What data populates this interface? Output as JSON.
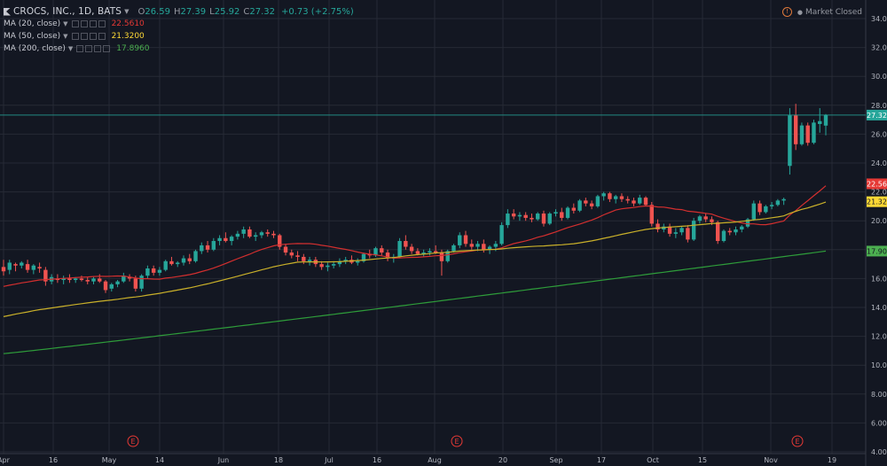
{
  "header": {
    "symbol": "CROCS, INC., 1D, BATS",
    "ohlc": {
      "o_label": "O",
      "o": "26.59",
      "h_label": "H",
      "h": "27.39",
      "l_label": "L",
      "l": "25.92",
      "c_label": "C",
      "c": "27.32"
    },
    "change": "+0.73 (+2.75%)"
  },
  "indicators": [
    {
      "label": "MA (20, close)",
      "value": "22.5610",
      "color": "#e53935"
    },
    {
      "label": "MA (50, close)",
      "value": "21.3200",
      "color": "#fdd835"
    },
    {
      "label": "MA (200, close)",
      "value": "17.8960",
      "color": "#4caf50"
    }
  ],
  "status": {
    "text": "Market Closed",
    "icon": "alert-icon"
  },
  "colors": {
    "up": "#26a69a",
    "down": "#ef5350",
    "ma20": "#d32f2f",
    "ma50": "#c9b02a",
    "ma200": "#2e9c3a",
    "bg": "#131722"
  },
  "chart_data": {
    "type": "candlestick",
    "ylim": [
      4,
      35
    ],
    "y_ticks": [
      "34.00",
      "32.00",
      "30.00",
      "28.00",
      "26.00",
      "24.00",
      "22.00",
      "20.00",
      "18.00",
      "16.00",
      "14.00",
      "12.00",
      "10.00",
      "8.00",
      "6.00",
      "4.00"
    ],
    "x_labels": [
      "Apr",
      "16",
      "May",
      "14",
      "Jun",
      "18",
      "Jul",
      "16",
      "Aug",
      "20",
      "Sep",
      "17",
      "Oct",
      "15",
      "Nov",
      "19"
    ],
    "last_price_label": "27.32",
    "ma_labels": {
      "ma20": "22.56",
      "ma50": "21.32",
      "ma200": "17.90"
    },
    "earnings_markers": [
      "E",
      "E",
      "E"
    ],
    "candles": [
      {
        "o": 16.8,
        "h": 17.3,
        "l": 16.2,
        "c": 16.5
      },
      {
        "o": 16.6,
        "h": 17.3,
        "l": 16.3,
        "c": 17.1
      },
      {
        "o": 17.0,
        "h": 17.1,
        "l": 16.5,
        "c": 16.9
      },
      {
        "o": 16.9,
        "h": 17.2,
        "l": 16.7,
        "c": 17.1
      },
      {
        "o": 17.0,
        "h": 17.3,
        "l": 16.4,
        "c": 16.6
      },
      {
        "o": 16.6,
        "h": 17.0,
        "l": 16.3,
        "c": 16.9
      },
      {
        "o": 16.8,
        "h": 17.1,
        "l": 16.4,
        "c": 16.7
      },
      {
        "o": 16.6,
        "h": 16.8,
        "l": 15.5,
        "c": 15.8
      },
      {
        "o": 15.8,
        "h": 16.3,
        "l": 15.6,
        "c": 16.1
      },
      {
        "o": 16.0,
        "h": 16.3,
        "l": 15.7,
        "c": 15.9
      },
      {
        "o": 15.9,
        "h": 16.2,
        "l": 15.6,
        "c": 16.0
      },
      {
        "o": 16.0,
        "h": 16.3,
        "l": 15.7,
        "c": 15.9
      },
      {
        "o": 15.9,
        "h": 16.1,
        "l": 15.7,
        "c": 16.0
      },
      {
        "o": 16.0,
        "h": 16.2,
        "l": 15.8,
        "c": 15.9
      },
      {
        "o": 15.9,
        "h": 16.1,
        "l": 15.6,
        "c": 15.8
      },
      {
        "o": 15.8,
        "h": 16.1,
        "l": 15.6,
        "c": 16.0
      },
      {
        "o": 16.0,
        "h": 16.3,
        "l": 15.7,
        "c": 15.8
      },
      {
        "o": 15.8,
        "h": 15.9,
        "l": 15.0,
        "c": 15.2
      },
      {
        "o": 15.3,
        "h": 15.7,
        "l": 15.1,
        "c": 15.6
      },
      {
        "o": 15.6,
        "h": 15.9,
        "l": 15.4,
        "c": 15.8
      },
      {
        "o": 15.8,
        "h": 16.4,
        "l": 15.7,
        "c": 16.2
      },
      {
        "o": 16.1,
        "h": 16.3,
        "l": 15.8,
        "c": 16.0
      },
      {
        "o": 16.0,
        "h": 16.2,
        "l": 15.1,
        "c": 15.3
      },
      {
        "o": 15.3,
        "h": 16.3,
        "l": 15.1,
        "c": 16.2
      },
      {
        "o": 16.2,
        "h": 16.9,
        "l": 16.0,
        "c": 16.7
      },
      {
        "o": 16.7,
        "h": 16.9,
        "l": 16.2,
        "c": 16.4
      },
      {
        "o": 16.4,
        "h": 16.8,
        "l": 16.2,
        "c": 16.6
      },
      {
        "o": 16.6,
        "h": 17.3,
        "l": 16.5,
        "c": 17.2
      },
      {
        "o": 17.2,
        "h": 17.5,
        "l": 16.9,
        "c": 17.0
      },
      {
        "o": 17.0,
        "h": 17.2,
        "l": 16.8,
        "c": 17.1
      },
      {
        "o": 17.1,
        "h": 17.6,
        "l": 16.9,
        "c": 17.4
      },
      {
        "o": 17.4,
        "h": 17.7,
        "l": 17.0,
        "c": 17.2
      },
      {
        "o": 17.2,
        "h": 18.0,
        "l": 17.1,
        "c": 17.9
      },
      {
        "o": 17.9,
        "h": 18.5,
        "l": 17.7,
        "c": 18.3
      },
      {
        "o": 18.3,
        "h": 18.6,
        "l": 17.8,
        "c": 18.0
      },
      {
        "o": 18.0,
        "h": 18.8,
        "l": 17.9,
        "c": 18.6
      },
      {
        "o": 18.6,
        "h": 19.0,
        "l": 18.3,
        "c": 18.8
      },
      {
        "o": 18.8,
        "h": 19.2,
        "l": 18.5,
        "c": 18.6
      },
      {
        "o": 18.6,
        "h": 19.0,
        "l": 18.3,
        "c": 18.9
      },
      {
        "o": 18.9,
        "h": 19.3,
        "l": 18.7,
        "c": 19.1
      },
      {
        "o": 19.1,
        "h": 19.6,
        "l": 18.8,
        "c": 19.4
      },
      {
        "o": 19.4,
        "h": 19.6,
        "l": 18.8,
        "c": 18.9
      },
      {
        "o": 18.9,
        "h": 19.2,
        "l": 18.6,
        "c": 19.0
      },
      {
        "o": 19.0,
        "h": 19.3,
        "l": 18.8,
        "c": 19.2
      },
      {
        "o": 19.2,
        "h": 19.4,
        "l": 18.9,
        "c": 19.1
      },
      {
        "o": 19.1,
        "h": 19.3,
        "l": 18.8,
        "c": 19.0
      },
      {
        "o": 19.0,
        "h": 19.1,
        "l": 18.0,
        "c": 18.2
      },
      {
        "o": 18.2,
        "h": 18.4,
        "l": 17.6,
        "c": 17.8
      },
      {
        "o": 17.8,
        "h": 18.0,
        "l": 17.4,
        "c": 17.6
      },
      {
        "o": 17.6,
        "h": 17.9,
        "l": 17.2,
        "c": 17.5
      },
      {
        "o": 17.5,
        "h": 17.7,
        "l": 17.0,
        "c": 17.2
      },
      {
        "o": 17.2,
        "h": 17.5,
        "l": 16.9,
        "c": 17.3
      },
      {
        "o": 17.3,
        "h": 17.5,
        "l": 16.8,
        "c": 17.0
      },
      {
        "o": 17.0,
        "h": 17.2,
        "l": 16.6,
        "c": 16.8
      },
      {
        "o": 16.8,
        "h": 17.1,
        "l": 16.5,
        "c": 16.9
      },
      {
        "o": 16.9,
        "h": 17.2,
        "l": 16.7,
        "c": 17.0
      },
      {
        "o": 17.0,
        "h": 17.4,
        "l": 16.8,
        "c": 17.2
      },
      {
        "o": 17.2,
        "h": 17.5,
        "l": 17.0,
        "c": 17.3
      },
      {
        "o": 17.3,
        "h": 17.6,
        "l": 17.0,
        "c": 17.1
      },
      {
        "o": 17.1,
        "h": 17.4,
        "l": 16.9,
        "c": 17.2
      },
      {
        "o": 17.2,
        "h": 17.8,
        "l": 17.1,
        "c": 17.7
      },
      {
        "o": 17.7,
        "h": 18.0,
        "l": 17.4,
        "c": 17.6
      },
      {
        "o": 17.6,
        "h": 18.2,
        "l": 17.5,
        "c": 18.1
      },
      {
        "o": 18.1,
        "h": 18.3,
        "l": 17.6,
        "c": 17.8
      },
      {
        "o": 17.8,
        "h": 18.0,
        "l": 17.2,
        "c": 17.4
      },
      {
        "o": 17.4,
        "h": 17.7,
        "l": 17.1,
        "c": 17.5
      },
      {
        "o": 17.5,
        "h": 18.8,
        "l": 17.4,
        "c": 18.6
      },
      {
        "o": 18.6,
        "h": 19.0,
        "l": 18.0,
        "c": 18.2
      },
      {
        "o": 18.2,
        "h": 18.4,
        "l": 17.7,
        "c": 17.9
      },
      {
        "o": 17.9,
        "h": 18.1,
        "l": 17.6,
        "c": 17.7
      },
      {
        "o": 17.7,
        "h": 18.0,
        "l": 17.5,
        "c": 17.8
      },
      {
        "o": 17.8,
        "h": 18.1,
        "l": 17.6,
        "c": 17.9
      },
      {
        "o": 17.9,
        "h": 18.3,
        "l": 17.7,
        "c": 17.8
      },
      {
        "o": 17.8,
        "h": 18.0,
        "l": 16.2,
        "c": 17.2
      },
      {
        "o": 17.2,
        "h": 18.0,
        "l": 17.1,
        "c": 17.9
      },
      {
        "o": 17.9,
        "h": 18.4,
        "l": 17.8,
        "c": 18.3
      },
      {
        "o": 18.3,
        "h": 19.2,
        "l": 18.1,
        "c": 19.0
      },
      {
        "o": 19.0,
        "h": 19.3,
        "l": 18.2,
        "c": 18.4
      },
      {
        "o": 18.4,
        "h": 18.7,
        "l": 18.0,
        "c": 18.2
      },
      {
        "o": 18.2,
        "h": 18.6,
        "l": 17.9,
        "c": 18.4
      },
      {
        "o": 18.4,
        "h": 18.7,
        "l": 17.8,
        "c": 18.0
      },
      {
        "o": 18.0,
        "h": 18.3,
        "l": 17.7,
        "c": 18.2
      },
      {
        "o": 18.2,
        "h": 18.6,
        "l": 17.9,
        "c": 18.4
      },
      {
        "o": 18.4,
        "h": 19.9,
        "l": 18.3,
        "c": 19.7
      },
      {
        "o": 19.7,
        "h": 20.8,
        "l": 19.5,
        "c": 20.5
      },
      {
        "o": 20.5,
        "h": 20.8,
        "l": 20.1,
        "c": 20.3
      },
      {
        "o": 20.3,
        "h": 20.6,
        "l": 20.0,
        "c": 20.4
      },
      {
        "o": 20.4,
        "h": 20.6,
        "l": 20.0,
        "c": 20.2
      },
      {
        "o": 20.2,
        "h": 20.5,
        "l": 19.9,
        "c": 20.1
      },
      {
        "o": 20.1,
        "h": 20.6,
        "l": 20.0,
        "c": 20.5
      },
      {
        "o": 20.5,
        "h": 20.7,
        "l": 19.6,
        "c": 19.8
      },
      {
        "o": 19.8,
        "h": 20.6,
        "l": 19.7,
        "c": 20.5
      },
      {
        "o": 20.5,
        "h": 20.8,
        "l": 20.3,
        "c": 20.6
      },
      {
        "o": 20.6,
        "h": 20.9,
        "l": 20.0,
        "c": 20.2
      },
      {
        "o": 20.2,
        "h": 21.0,
        "l": 20.1,
        "c": 20.9
      },
      {
        "o": 20.9,
        "h": 21.2,
        "l": 20.5,
        "c": 20.7
      },
      {
        "o": 20.7,
        "h": 21.5,
        "l": 20.6,
        "c": 21.4
      },
      {
        "o": 21.4,
        "h": 21.6,
        "l": 21.0,
        "c": 21.2
      },
      {
        "o": 21.2,
        "h": 21.4,
        "l": 20.8,
        "c": 21.0
      },
      {
        "o": 21.0,
        "h": 21.8,
        "l": 20.9,
        "c": 21.7
      },
      {
        "o": 21.7,
        "h": 22.0,
        "l": 21.4,
        "c": 21.9
      },
      {
        "o": 21.9,
        "h": 22.0,
        "l": 21.3,
        "c": 21.5
      },
      {
        "o": 21.5,
        "h": 21.8,
        "l": 21.2,
        "c": 21.7
      },
      {
        "o": 21.7,
        "h": 21.9,
        "l": 21.3,
        "c": 21.5
      },
      {
        "o": 21.5,
        "h": 21.7,
        "l": 21.2,
        "c": 21.4
      },
      {
        "o": 21.4,
        "h": 21.6,
        "l": 21.0,
        "c": 21.2
      },
      {
        "o": 21.2,
        "h": 21.8,
        "l": 21.1,
        "c": 21.6
      },
      {
        "o": 21.6,
        "h": 21.7,
        "l": 21.0,
        "c": 21.1
      },
      {
        "o": 21.1,
        "h": 21.3,
        "l": 19.6,
        "c": 19.8
      },
      {
        "o": 19.8,
        "h": 20.1,
        "l": 19.2,
        "c": 19.4
      },
      {
        "o": 19.4,
        "h": 19.8,
        "l": 19.2,
        "c": 19.6
      },
      {
        "o": 19.6,
        "h": 19.8,
        "l": 18.9,
        "c": 19.1
      },
      {
        "o": 19.1,
        "h": 19.5,
        "l": 18.8,
        "c": 19.2
      },
      {
        "o": 19.2,
        "h": 19.6,
        "l": 19.0,
        "c": 19.5
      },
      {
        "o": 19.5,
        "h": 19.7,
        "l": 18.5,
        "c": 18.7
      },
      {
        "o": 18.7,
        "h": 20.2,
        "l": 18.6,
        "c": 20.0
      },
      {
        "o": 20.0,
        "h": 20.4,
        "l": 19.8,
        "c": 20.3
      },
      {
        "o": 20.3,
        "h": 20.5,
        "l": 19.9,
        "c": 20.1
      },
      {
        "o": 20.1,
        "h": 20.3,
        "l": 19.7,
        "c": 19.9
      },
      {
        "o": 19.9,
        "h": 20.0,
        "l": 18.4,
        "c": 18.6
      },
      {
        "o": 18.6,
        "h": 19.4,
        "l": 18.5,
        "c": 19.3
      },
      {
        "o": 19.3,
        "h": 19.5,
        "l": 19.0,
        "c": 19.2
      },
      {
        "o": 19.2,
        "h": 19.6,
        "l": 19.0,
        "c": 19.4
      },
      {
        "o": 19.4,
        "h": 19.7,
        "l": 19.2,
        "c": 19.6
      },
      {
        "o": 19.6,
        "h": 20.2,
        "l": 19.5,
        "c": 20.1
      },
      {
        "o": 20.1,
        "h": 21.4,
        "l": 20.0,
        "c": 21.2
      },
      {
        "o": 21.2,
        "h": 21.4,
        "l": 20.4,
        "c": 20.6
      },
      {
        "o": 20.6,
        "h": 21.1,
        "l": 20.5,
        "c": 21.0
      },
      {
        "o": 21.0,
        "h": 21.3,
        "l": 20.8,
        "c": 21.1
      },
      {
        "o": 21.1,
        "h": 21.5,
        "l": 21.0,
        "c": 21.4
      },
      {
        "o": 21.4,
        "h": 21.6,
        "l": 21.1,
        "c": 21.5
      },
      {
        "o": 23.8,
        "h": 27.8,
        "l": 23.2,
        "c": 27.3
      },
      {
        "o": 27.3,
        "h": 28.1,
        "l": 24.9,
        "c": 25.3
      },
      {
        "o": 25.3,
        "h": 26.8,
        "l": 25.2,
        "c": 26.6
      },
      {
        "o": 26.6,
        "h": 26.8,
        "l": 25.2,
        "c": 25.4
      },
      {
        "o": 25.4,
        "h": 27.0,
        "l": 25.3,
        "c": 26.8
      },
      {
        "o": 26.7,
        "h": 27.8,
        "l": 26.1,
        "c": 26.9
      },
      {
        "o": 26.59,
        "h": 27.39,
        "l": 25.92,
        "c": 27.32
      }
    ]
  }
}
